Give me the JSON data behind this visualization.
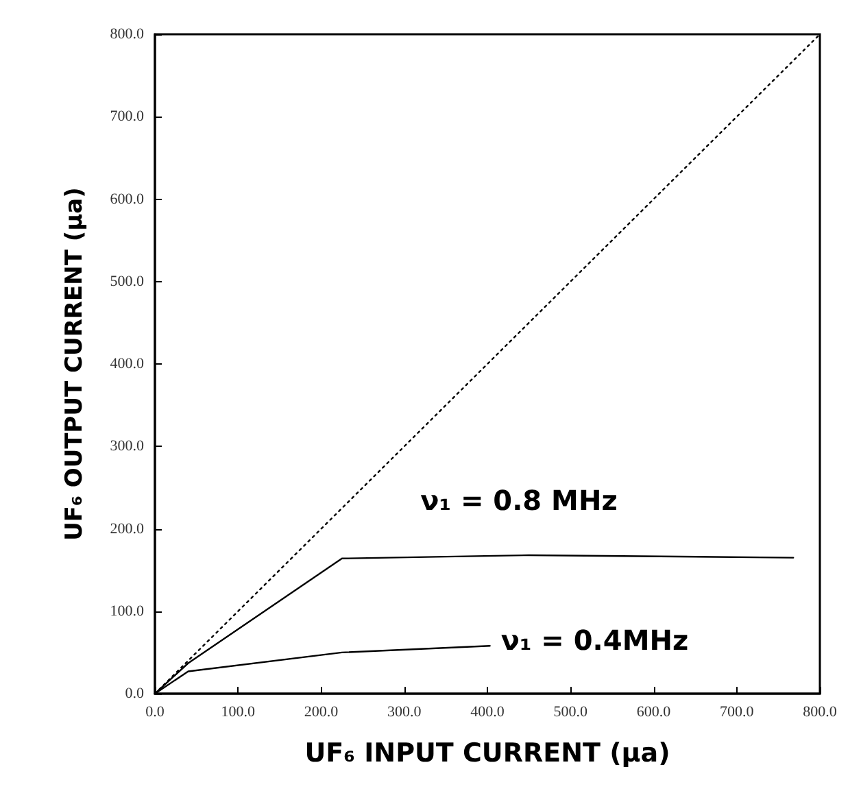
{
  "chart_data": {
    "type": "line",
    "xlabel": "UF₆ INPUT CURRENT (μa)",
    "ylabel": "UF₆ OUTPUT CURRENT (μa)",
    "xlim": [
      0,
      800
    ],
    "ylim": [
      0,
      800
    ],
    "xticks": [
      {
        "value": 0,
        "label": "0.0"
      },
      {
        "value": 100,
        "label": "100.0"
      },
      {
        "value": 200,
        "label": "200.0"
      },
      {
        "value": 300,
        "label": "300.0"
      },
      {
        "value": 400,
        "label": "400.0"
      },
      {
        "value": 500,
        "label": "500.0"
      },
      {
        "value": 600,
        "label": "600.0"
      },
      {
        "value": 700,
        "label": "700.0"
      },
      {
        "value": 800,
        "label": "800.0"
      }
    ],
    "yticks": [
      {
        "value": 0,
        "label": "0.0"
      },
      {
        "value": 100,
        "label": "100.0"
      },
      {
        "value": 200,
        "label": "200.0"
      },
      {
        "value": 300,
        "label": "300.0"
      },
      {
        "value": 400,
        "label": "400.0"
      },
      {
        "value": 500,
        "label": "500.0"
      },
      {
        "value": 600,
        "label": "600.0"
      },
      {
        "value": 700,
        "label": "700.0"
      },
      {
        "value": 800,
        "label": "800.0"
      }
    ],
    "grid": false,
    "legend": false,
    "marker": "none",
    "line_style": "solid",
    "series": [
      {
        "name": "ν₁ = 0.8 MHz",
        "color": "#000000",
        "x": [
          0,
          40,
          225,
          450,
          768
        ],
        "values": [
          0,
          37,
          164,
          168,
          165
        ]
      },
      {
        "name": "ν₁ = 0.4MHz",
        "color": "#000000",
        "x": [
          0,
          40,
          225,
          403
        ],
        "values": [
          0,
          27,
          50,
          58
        ]
      },
      {
        "type": "line",
        "color": "#000000",
        "line_style": "dotted",
        "x": [
          0,
          800
        ],
        "values": [
          0,
          800
        ]
      }
    ]
  }
}
